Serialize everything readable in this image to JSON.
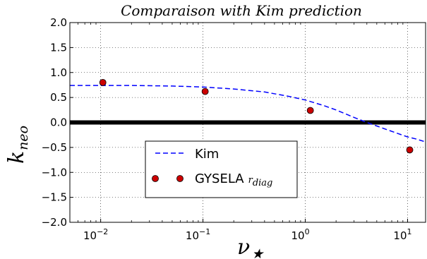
{
  "chart_data": {
    "type": "line",
    "title": "Comparaison with Kim prediction",
    "xlabel": "ν",
    "xlabel_sub": "★",
    "ylabel": "k",
    "ylabel_sub": "neo",
    "xscale": "log",
    "xlim": [
      0.005,
      15
    ],
    "ylim": [
      -2.0,
      2.0
    ],
    "yticks": [
      2.0,
      1.5,
      1.0,
      0.5,
      0.0,
      -0.5,
      -1.0,
      -1.5,
      -2.0
    ],
    "ytick_labels": [
      "2.0",
      "1.5",
      "1.0",
      "0.5",
      "0.0",
      "−0.5",
      "−1.0",
      "−1.5",
      "−2.0"
    ],
    "xticks": [
      {
        "value": 0.01,
        "base": "10",
        "exp": "−2"
      },
      {
        "value": 0.1,
        "base": "10",
        "exp": "−1"
      },
      {
        "value": 1,
        "base": "10",
        "exp": "0"
      },
      {
        "value": 10,
        "base": "10",
        "exp": "1"
      }
    ],
    "grid": true,
    "hline": {
      "y": 0.0,
      "color": "#000000"
    },
    "legend_position": "lower-center",
    "series": [
      {
        "name": "Kim",
        "style": "dashed",
        "color": "#0000ff",
        "x": [
          0.005,
          0.02,
          0.05,
          0.1,
          0.2,
          0.4,
          0.7,
          1.0,
          1.5,
          2.0,
          3.0,
          4.0,
          5.0,
          6.0,
          8.0,
          10.0,
          12.0,
          15.0
        ],
        "y": [
          0.74,
          0.74,
          0.73,
          0.71,
          0.67,
          0.61,
          0.52,
          0.45,
          0.34,
          0.25,
          0.1,
          0.0,
          -0.07,
          -0.13,
          -0.22,
          -0.29,
          -0.33,
          -0.39
        ]
      },
      {
        "name": "GYSELA",
        "name_sub": "r",
        "name_sub2": "diag",
        "style": "markers",
        "color": "#cc0000",
        "x": [
          0.0105,
          0.105,
          1.12,
          10.5
        ],
        "y": [
          0.8,
          0.62,
          0.24,
          -0.55
        ]
      }
    ]
  }
}
